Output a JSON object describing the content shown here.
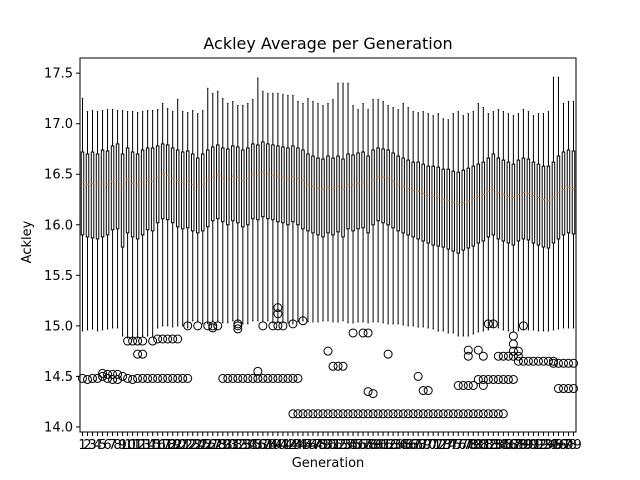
{
  "chart_data": {
    "type": "boxplot",
    "title": "Ackley Average per Generation",
    "xlabel": "Generation",
    "ylabel": "Ackley",
    "ylim": [
      13.95,
      17.65
    ],
    "yticks": [
      14.0,
      14.5,
      15.0,
      15.5,
      16.0,
      16.5,
      17.0,
      17.5
    ],
    "ytick_labels": [
      "14.0",
      "14.5",
      "15.0",
      "15.5",
      "16.0",
      "16.5",
      "17.0",
      "17.5"
    ],
    "generations": [
      1,
      2,
      3,
      4,
      5,
      6,
      7,
      8,
      9,
      10,
      11,
      12,
      13,
      14,
      15,
      16,
      17,
      18,
      19,
      20,
      21,
      22,
      23,
      24,
      25,
      26,
      27,
      28,
      29,
      30,
      31,
      32,
      33,
      34,
      35,
      36,
      37,
      38,
      39,
      40,
      41,
      42,
      43,
      44,
      45,
      46,
      47,
      48,
      49,
      50,
      51,
      52,
      53,
      54,
      55,
      56,
      57,
      58,
      59,
      60,
      61,
      62,
      63,
      64,
      65,
      66,
      67,
      68,
      69,
      70,
      71,
      72,
      73,
      74,
      75,
      76,
      77,
      78,
      79,
      80,
      81,
      82,
      83,
      84,
      85,
      86,
      87,
      88,
      89,
      90,
      91,
      92,
      93,
      94,
      95,
      96,
      97,
      98,
      99
    ],
    "medians": [
      16.42,
      16.4,
      16.41,
      16.39,
      16.42,
      16.4,
      16.43,
      16.44,
      16.38,
      16.45,
      16.41,
      16.4,
      16.42,
      16.44,
      16.43,
      16.48,
      16.5,
      16.49,
      16.46,
      16.44,
      16.42,
      16.43,
      16.4,
      16.38,
      16.4,
      16.44,
      16.47,
      16.49,
      16.46,
      16.45,
      16.48,
      16.47,
      16.44,
      16.46,
      16.5,
      16.49,
      16.52,
      16.5,
      16.49,
      16.48,
      16.47,
      16.46,
      16.48,
      16.46,
      16.44,
      16.4,
      16.38,
      16.36,
      16.35,
      16.37,
      16.36,
      16.38,
      16.35,
      16.4,
      16.39,
      16.41,
      16.42,
      16.38,
      16.45,
      16.48,
      16.47,
      16.46,
      16.43,
      16.4,
      16.38,
      16.36,
      16.34,
      16.33,
      16.31,
      16.29,
      16.28,
      16.27,
      16.25,
      16.24,
      16.22,
      16.2,
      16.22,
      16.24,
      16.26,
      16.28,
      16.3,
      16.33,
      16.35,
      16.32,
      16.3,
      16.28,
      16.27,
      16.3,
      16.32,
      16.31,
      16.29,
      16.27,
      16.25,
      16.24,
      16.28,
      16.32,
      16.35,
      16.37,
      16.36
    ],
    "q1": [
      15.9,
      15.88,
      15.87,
      15.86,
      15.88,
      15.9,
      15.95,
      15.96,
      15.78,
      15.92,
      15.88,
      15.86,
      15.9,
      15.95,
      15.94,
      16.02,
      16.06,
      16.05,
      16.02,
      15.98,
      15.96,
      15.97,
      15.94,
      15.92,
      15.94,
      15.98,
      16.04,
      16.06,
      16.03,
      16.0,
      16.04,
      16.02,
      15.98,
      16.0,
      16.06,
      16.05,
      16.08,
      16.06,
      16.05,
      16.03,
      16.02,
      16.0,
      16.03,
      16.0,
      15.96,
      15.94,
      15.92,
      15.9,
      15.88,
      15.92,
      15.9,
      15.93,
      15.88,
      15.96,
      15.94,
      15.96,
      15.97,
      15.92,
      16.0,
      16.04,
      16.02,
      16.0,
      15.97,
      15.94,
      15.92,
      15.9,
      15.88,
      15.86,
      15.84,
      15.82,
      15.8,
      15.79,
      15.78,
      15.76,
      15.74,
      15.72,
      15.75,
      15.77,
      15.79,
      15.82,
      15.84,
      15.88,
      15.9,
      15.86,
      15.84,
      15.82,
      15.8,
      15.84,
      15.86,
      15.85,
      15.82,
      15.8,
      15.78,
      15.77,
      15.82,
      15.86,
      15.9,
      15.92,
      15.91
    ],
    "q3": [
      16.72,
      16.7,
      16.72,
      16.7,
      16.74,
      16.73,
      16.78,
      16.8,
      16.7,
      16.76,
      16.72,
      16.7,
      16.74,
      16.76,
      16.76,
      16.78,
      16.8,
      16.79,
      16.76,
      16.74,
      16.72,
      16.73,
      16.7,
      16.66,
      16.7,
      16.74,
      16.77,
      16.79,
      16.76,
      16.75,
      16.78,
      16.77,
      16.74,
      16.76,
      16.8,
      16.79,
      16.82,
      16.8,
      16.79,
      16.78,
      16.77,
      16.76,
      16.78,
      16.76,
      16.74,
      16.7,
      16.68,
      16.66,
      16.65,
      16.68,
      16.66,
      16.68,
      16.65,
      16.7,
      16.69,
      16.71,
      16.72,
      16.68,
      16.74,
      16.76,
      16.75,
      16.74,
      16.71,
      16.68,
      16.66,
      16.64,
      16.62,
      16.62,
      16.6,
      16.58,
      16.58,
      16.57,
      16.55,
      16.55,
      16.53,
      16.52,
      16.54,
      16.56,
      16.58,
      16.6,
      16.62,
      16.66,
      16.7,
      16.66,
      16.64,
      16.62,
      16.6,
      16.64,
      16.66,
      16.65,
      16.62,
      16.6,
      16.58,
      16.58,
      16.62,
      16.68,
      16.72,
      16.74,
      16.73
    ],
    "whisker_low": [
      14.95,
      14.96,
      14.97,
      14.95,
      14.96,
      14.97,
      14.98,
      14.98,
      14.9,
      14.88,
      14.87,
      14.88,
      14.9,
      14.9,
      14.89,
      14.98,
      15.0,
      15.0,
      14.99,
      15.0,
      15.0,
      14.98,
      15.05,
      15.05,
      15.02,
      15.02,
      15.05,
      15.05,
      15.03,
      15.03,
      15.05,
      15.04,
      15.02,
      15.02,
      15.05,
      15.05,
      15.05,
      15.05,
      15.03,
      15.03,
      15.03,
      15.03,
      15.02,
      15.04,
      15.05,
      15.04,
      15.04,
      15.04,
      15.05,
      15.05,
      15.04,
      15.04,
      15.05,
      15.03,
      15.03,
      15.04,
      15.04,
      15.03,
      15.04,
      15.04,
      15.03,
      15.02,
      15.02,
      15.02,
      15.01,
      15.0,
      15.0,
      14.99,
      14.99,
      14.98,
      14.97,
      14.95,
      14.95,
      14.93,
      14.93,
      14.9,
      14.9,
      14.9,
      14.92,
      14.94,
      14.95,
      14.96,
      14.98,
      14.98,
      14.96,
      14.95,
      14.94,
      14.95,
      14.96,
      14.96,
      14.96,
      14.95,
      14.95,
      14.95,
      14.96,
      14.97,
      14.98,
      14.98,
      14.98
    ],
    "whisker_high": [
      17.25,
      17.12,
      17.13,
      17.12,
      17.13,
      17.14,
      17.14,
      17.13,
      17.13,
      17.12,
      17.12,
      17.11,
      17.12,
      17.13,
      17.13,
      17.14,
      17.2,
      17.15,
      17.12,
      17.24,
      17.12,
      17.11,
      17.13,
      17.1,
      17.13,
      17.35,
      17.3,
      17.32,
      17.25,
      17.2,
      17.22,
      17.18,
      17.18,
      17.2,
      17.24,
      17.45,
      17.32,
      17.3,
      17.3,
      17.3,
      17.29,
      17.28,
      17.28,
      17.22,
      17.2,
      17.25,
      17.22,
      17.2,
      17.18,
      17.2,
      17.24,
      17.4,
      17.4,
      17.4,
      17.18,
      17.14,
      17.2,
      17.14,
      17.24,
      17.24,
      17.22,
      17.18,
      17.16,
      17.14,
      17.2,
      17.16,
      17.12,
      17.11,
      17.12,
      17.1,
      17.08,
      17.1,
      17.05,
      17.04,
      17.1,
      17.12,
      17.08,
      17.1,
      17.12,
      17.2,
      17.16,
      17.1,
      17.12,
      17.14,
      17.12,
      17.1,
      17.08,
      17.1,
      17.14,
      17.12,
      17.08,
      17.1,
      17.1,
      17.12,
      17.46,
      17.46,
      17.2,
      17.22,
      17.22
    ],
    "outliers": [
      [
        14.48
      ],
      [
        14.47
      ],
      [
        14.48
      ],
      [
        14.48
      ],
      [
        14.5,
        14.53
      ],
      [
        14.48,
        14.52
      ],
      [
        14.47,
        14.52
      ],
      [
        14.47,
        14.52
      ],
      [
        14.5
      ],
      [
        14.48,
        14.85
      ],
      [
        14.47,
        14.85
      ],
      [
        14.48,
        14.72,
        14.85
      ],
      [
        14.48,
        14.72,
        14.85
      ],
      [
        14.48
      ],
      [
        14.48,
        14.85
      ],
      [
        14.48,
        14.87
      ],
      [
        14.48,
        14.87
      ],
      [
        14.48,
        14.87
      ],
      [
        14.48,
        14.87
      ],
      [
        14.48,
        14.87
      ],
      [
        14.48
      ],
      [
        14.48,
        15.0
      ],
      [],
      [
        15.0
      ],
      [],
      [
        15.0
      ],
      [
        14.98,
        15.0
      ],
      [
        15.0
      ],
      [
        14.48
      ],
      [
        14.48
      ],
      [
        14.48
      ],
      [
        14.48,
        14.97,
        15.0,
        15.02
      ],
      [
        14.48
      ],
      [
        14.48
      ],
      [
        14.48
      ],
      [
        14.48,
        14.55
      ],
      [
        14.48,
        15.0
      ],
      [
        14.48
      ],
      [
        14.48,
        15.0
      ],
      [
        14.48,
        15.0,
        15.12,
        15.18
      ],
      [
        14.48,
        15.0
      ],
      [
        14.48
      ],
      [
        14.13,
        14.48,
        15.02
      ],
      [
        14.13,
        14.48
      ],
      [
        14.13,
        15.05
      ],
      [
        14.13
      ],
      [
        14.13
      ],
      [
        14.13
      ],
      [
        14.13
      ],
      [
        14.13,
        14.75
      ],
      [
        14.13,
        14.6
      ],
      [
        14.13,
        14.6
      ],
      [
        14.13,
        14.6
      ],
      [
        14.13
      ],
      [
        14.13,
        14.93
      ],
      [
        14.13
      ],
      [
        14.13,
        14.93
      ],
      [
        14.13,
        14.35,
        14.93
      ],
      [
        14.13,
        14.33
      ],
      [
        14.13
      ],
      [
        14.13
      ],
      [
        14.13,
        14.72
      ],
      [
        14.13
      ],
      [
        14.13
      ],
      [
        14.13
      ],
      [
        14.13
      ],
      [
        14.13
      ],
      [
        14.13,
        14.5
      ],
      [
        14.13,
        14.36
      ],
      [
        14.13,
        14.36
      ],
      [
        14.13
      ],
      [
        14.13
      ],
      [
        14.13
      ],
      [
        14.13
      ],
      [
        14.13
      ],
      [
        14.13,
        14.41
      ],
      [
        14.13,
        14.41
      ],
      [
        14.13,
        14.41,
        14.7,
        14.76
      ],
      [
        14.13,
        14.41
      ],
      [
        14.13,
        14.47,
        14.76
      ],
      [
        14.13,
        14.41,
        14.47,
        14.7
      ],
      [
        14.13,
        14.47,
        15.02
      ],
      [
        14.13,
        14.47,
        15.02
      ],
      [
        14.13,
        14.47,
        14.7
      ],
      [
        14.13,
        14.47,
        14.7
      ],
      [
        14.47,
        14.7
      ],
      [
        14.47,
        14.7,
        14.75,
        14.82,
        14.9
      ],
      [
        14.65,
        14.7,
        14.75
      ],
      [
        14.65,
        15.0
      ],
      [
        14.65
      ],
      [
        14.65
      ],
      [
        14.65
      ],
      [
        14.65
      ],
      [
        14.65
      ],
      [
        14.63,
        14.65
      ],
      [
        14.38,
        14.63
      ],
      [
        14.38,
        14.63
      ],
      [
        14.38,
        14.63
      ],
      [
        14.38,
        14.63
      ]
    ],
    "grid": false
  }
}
